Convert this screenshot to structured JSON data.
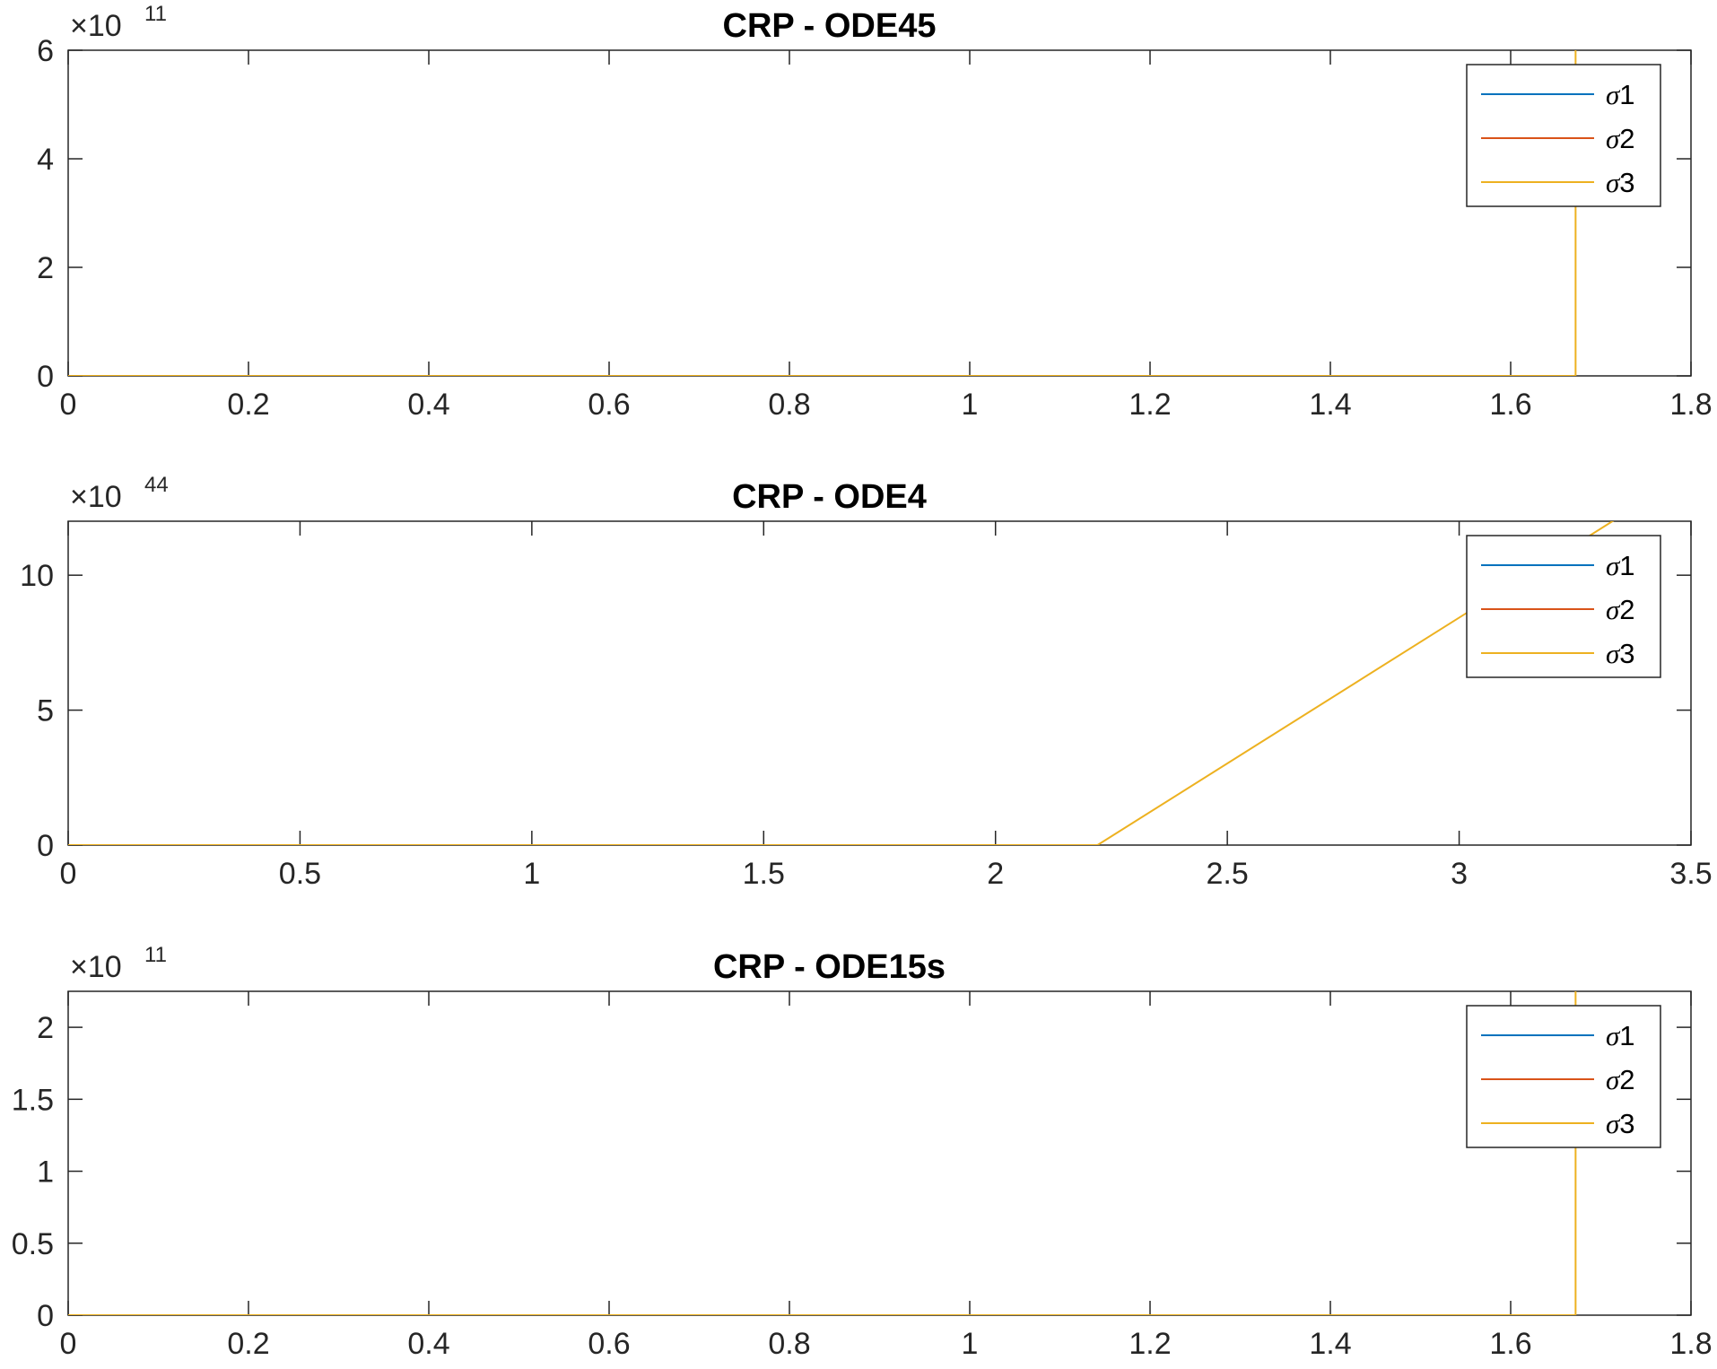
{
  "chart_data": [
    {
      "type": "line",
      "title": "CRP - ODE45",
      "xlabel": "",
      "ylabel": "",
      "xlim": [
        0,
        1.8
      ],
      "ylim": [
        0,
        6
      ],
      "y_exponent_label": "×10",
      "y_exponent": "11",
      "x_ticks": [
        0,
        0.2,
        0.4,
        0.6,
        0.8,
        1,
        1.2,
        1.4,
        1.6,
        1.8
      ],
      "x_tick_labels": [
        "0",
        "0.2",
        "0.4",
        "0.6",
        "0.8",
        "1",
        "1.2",
        "1.4",
        "1.6",
        "1.8"
      ],
      "y_ticks": [
        0,
        2,
        4,
        6
      ],
      "y_tick_labels": [
        "0",
        "2",
        "4",
        "6"
      ],
      "grid": false,
      "legend_position": "top-right",
      "series": [
        {
          "name": "σ1",
          "color": "#0072BD",
          "x": [
            0,
            1.672
          ],
          "y": [
            0,
            0
          ]
        },
        {
          "name": "σ2",
          "color": "#D95319",
          "x": [
            0,
            1.672
          ],
          "y": [
            0,
            0
          ]
        },
        {
          "name": "σ3",
          "color": "#EDB120",
          "x": [
            0,
            1.672,
            1.672
          ],
          "y": [
            0,
            0,
            6.5
          ]
        }
      ]
    },
    {
      "type": "line",
      "title": "CRP - ODE4",
      "xlabel": "",
      "ylabel": "",
      "xlim": [
        0,
        3.5
      ],
      "ylim": [
        0,
        12
      ],
      "y_exponent_label": "×10",
      "y_exponent": "44",
      "x_ticks": [
        0,
        0.5,
        1,
        1.5,
        2,
        2.5,
        3,
        3.5
      ],
      "x_tick_labels": [
        "0",
        "0.5",
        "1",
        "1.5",
        "2",
        "2.5",
        "3",
        "3.5"
      ],
      "y_ticks": [
        0,
        5,
        10
      ],
      "y_tick_labels": [
        "0",
        "5",
        "10"
      ],
      "grid": false,
      "legend_position": "top-right",
      "series": [
        {
          "name": "σ1",
          "color": "#0072BD",
          "x": [
            0,
            2.22
          ],
          "y": [
            0,
            0
          ]
        },
        {
          "name": "σ2",
          "color": "#D95319",
          "x": [
            0,
            2.22
          ],
          "y": [
            0,
            0
          ]
        },
        {
          "name": "σ3",
          "color": "#EDB120",
          "x": [
            0,
            2.22,
            3.34
          ],
          "y": [
            0,
            0,
            12.1
          ]
        }
      ]
    },
    {
      "type": "line",
      "title": "CRP - ODE15s",
      "xlabel": "",
      "ylabel": "",
      "xlim": [
        0,
        1.8
      ],
      "ylim": [
        0,
        2.25
      ],
      "y_exponent_label": "×10",
      "y_exponent": "11",
      "x_ticks": [
        0,
        0.2,
        0.4,
        0.6,
        0.8,
        1,
        1.2,
        1.4,
        1.6,
        1.8
      ],
      "x_tick_labels": [
        "0",
        "0.2",
        "0.4",
        "0.6",
        "0.8",
        "1",
        "1.2",
        "1.4",
        "1.6",
        "1.8"
      ],
      "y_ticks": [
        0,
        0.5,
        1,
        1.5,
        2
      ],
      "y_tick_labels": [
        "0",
        "0.5",
        "1",
        "1.5",
        "2"
      ],
      "grid": false,
      "legend_position": "top-right",
      "series": [
        {
          "name": "σ1",
          "color": "#0072BD",
          "x": [
            0,
            1.672
          ],
          "y": [
            0,
            0
          ]
        },
        {
          "name": "σ2",
          "color": "#D95319",
          "x": [
            0,
            1.672
          ],
          "y": [
            0,
            0
          ]
        },
        {
          "name": "σ3",
          "color": "#EDB120",
          "x": [
            0,
            1.672,
            1.672
          ],
          "y": [
            0,
            0,
            2.5
          ]
        }
      ]
    }
  ]
}
